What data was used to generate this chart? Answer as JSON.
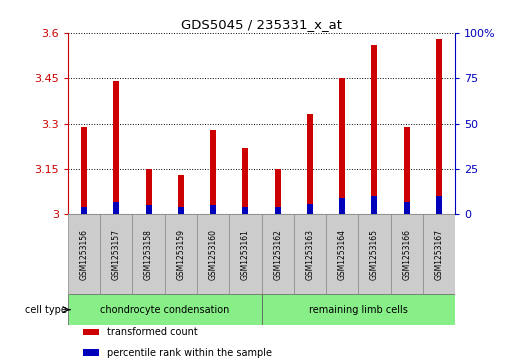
{
  "title": "GDS5045 / 235331_x_at",
  "samples": [
    "GSM1253156",
    "GSM1253157",
    "GSM1253158",
    "GSM1253159",
    "GSM1253160",
    "GSM1253161",
    "GSM1253162",
    "GSM1253163",
    "GSM1253164",
    "GSM1253165",
    "GSM1253166",
    "GSM1253167"
  ],
  "red_values": [
    3.29,
    3.44,
    3.15,
    3.13,
    3.28,
    3.22,
    3.15,
    3.33,
    3.45,
    3.56,
    3.29,
    3.58
  ],
  "blue_values": [
    4,
    7,
    5,
    4,
    5,
    4,
    4,
    6,
    9,
    10,
    7,
    10
  ],
  "y_min": 3.0,
  "y_max": 3.6,
  "y_ticks": [
    3.0,
    3.15,
    3.3,
    3.45,
    3.6
  ],
  "y_tick_labels": [
    "3",
    "3.15",
    "3.3",
    "3.45",
    "3.6"
  ],
  "right_y_ticks": [
    0,
    25,
    50,
    75,
    100
  ],
  "right_y_tick_labels": [
    "0",
    "25",
    "50",
    "75",
    "100%"
  ],
  "bar_width": 0.18,
  "blue_bar_width": 0.18,
  "bar_color_red": "#cc0000",
  "bar_color_blue": "#0000bb",
  "cell_type_groups": [
    {
      "label": "chondrocyte condensation",
      "start": 0,
      "end": 5,
      "color": "#88ee88"
    },
    {
      "label": "remaining limb cells",
      "start": 6,
      "end": 11,
      "color": "#88ee88"
    }
  ],
  "cell_type_label": "cell type",
  "legend_items": [
    {
      "label": "transformed count",
      "color": "#cc0000"
    },
    {
      "label": "percentile rank within the sample",
      "color": "#0000bb"
    }
  ],
  "sample_box_color": "#cccccc",
  "plot_bg_color": "#ffffff",
  "title_color": "#000000",
  "left_axis_color": "#cc0000",
  "right_axis_color": "#0000bb"
}
